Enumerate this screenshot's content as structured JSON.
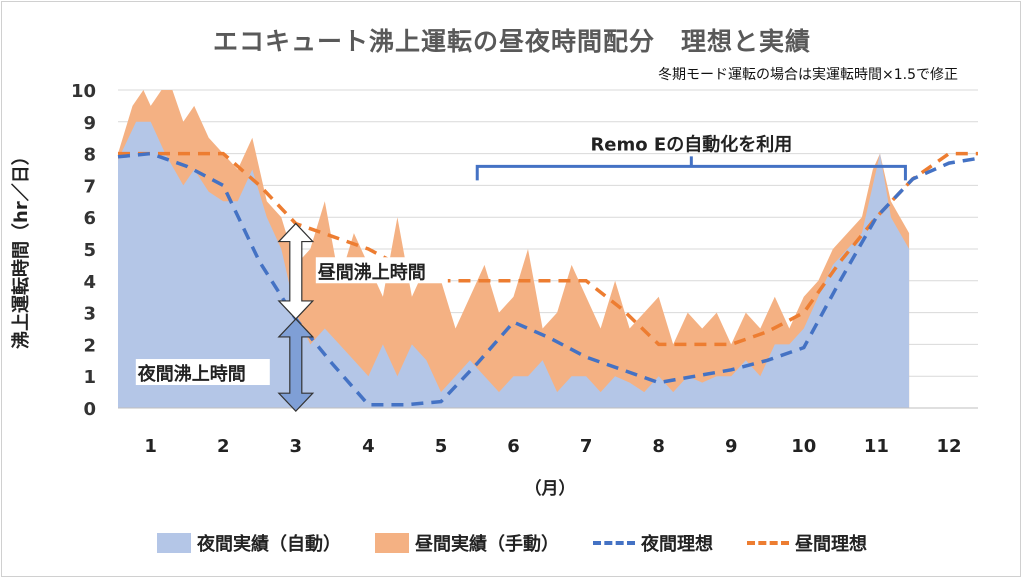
{
  "chart_data": {
    "type": "area",
    "title": "エコキュート沸上運転の昼夜時間配分　理想と実績",
    "subtitle": "冬期モード運転の場合は実運転時間×1.5で修正",
    "ylabel": "沸上運転時間（hr／日）",
    "xlabel": "（月）",
    "ylim": [
      0,
      10
    ],
    "yticks": [
      0,
      1,
      2,
      3,
      4,
      5,
      6,
      7,
      8,
      9,
      10
    ],
    "x_categories": [
      "1",
      "2",
      "3",
      "4",
      "5",
      "6",
      "7",
      "8",
      "9",
      "10",
      "11",
      "12"
    ],
    "colors": {
      "night_actual": "#b4c6e7",
      "day_actual": "#f4b183",
      "night_ideal": "#4472c4",
      "day_ideal": "#ed7d31",
      "annotation": "#4472c4",
      "arrow_fill": "#7f9fd6"
    },
    "series": [
      {
        "name": "夜間実績（自動）",
        "kind": "area",
        "x": [
          0.55,
          0.8,
          1.0,
          1.2,
          1.45,
          1.6,
          1.8,
          2.0,
          2.2,
          2.4,
          2.6,
          2.8,
          3.0,
          3.2,
          3.4,
          3.6,
          3.8,
          4.0,
          4.2,
          4.4,
          4.6,
          4.8,
          5.0,
          5.2,
          5.4,
          5.6,
          5.8,
          6.0,
          6.2,
          6.4,
          6.6,
          6.8,
          7.0,
          7.2,
          7.4,
          7.6,
          7.8,
          8.0,
          8.2,
          8.4,
          8.6,
          8.8,
          9.0,
          9.2,
          9.4,
          9.6,
          9.8,
          10.0,
          10.2,
          10.4,
          10.6,
          10.8,
          10.95,
          11.05,
          11.2,
          11.45
        ],
        "values": [
          7.8,
          9.0,
          9.0,
          8.0,
          7.0,
          7.5,
          6.8,
          6.5,
          6.5,
          7.5,
          6.0,
          5.0,
          3.0,
          2.0,
          2.5,
          2.0,
          1.5,
          1.0,
          2.0,
          1.0,
          2.0,
          1.5,
          0.5,
          1.0,
          1.5,
          1.0,
          0.5,
          1.0,
          1.0,
          1.5,
          0.5,
          1.0,
          1.0,
          0.5,
          1.0,
          0.8,
          0.5,
          1.0,
          0.5,
          1.0,
          0.8,
          1.0,
          1.0,
          1.5,
          1.0,
          2.0,
          2.0,
          2.5,
          3.5,
          4.5,
          5.0,
          5.5,
          7.0,
          8.0,
          6.0,
          5.0
        ]
      },
      {
        "name": "昼間実績（手動）",
        "kind": "area",
        "x": [
          0.55,
          0.75,
          0.9,
          1.0,
          1.15,
          1.3,
          1.45,
          1.6,
          1.8,
          2.0,
          2.2,
          2.4,
          2.6,
          2.8,
          3.0,
          3.2,
          3.4,
          3.6,
          3.8,
          4.0,
          4.2,
          4.4,
          4.6,
          4.8,
          5.0,
          5.2,
          5.4,
          5.6,
          5.8,
          6.0,
          6.2,
          6.4,
          6.6,
          6.8,
          7.0,
          7.2,
          7.4,
          7.6,
          7.8,
          8.0,
          8.2,
          8.4,
          8.6,
          8.8,
          9.0,
          9.2,
          9.4,
          9.6,
          9.8,
          10.0,
          10.2,
          10.4,
          10.6,
          10.8,
          10.95,
          11.05,
          11.2,
          11.45
        ],
        "values": [
          8.0,
          9.5,
          10.0,
          9.5,
          10.0,
          10.0,
          9.0,
          9.5,
          8.5,
          8.0,
          7.5,
          8.5,
          6.5,
          6.0,
          4.5,
          5.0,
          6.5,
          4.0,
          5.5,
          4.5,
          3.5,
          6.0,
          3.5,
          4.5,
          4.0,
          2.5,
          3.5,
          4.5,
          3.0,
          3.5,
          5.0,
          2.5,
          3.0,
          4.5,
          3.5,
          2.5,
          4.0,
          2.5,
          3.0,
          3.5,
          2.0,
          3.0,
          2.5,
          3.0,
          2.0,
          3.0,
          2.5,
          3.5,
          2.5,
          3.5,
          4.0,
          5.0,
          5.5,
          6.0,
          7.5,
          8.0,
          6.5,
          5.5
        ]
      },
      {
        "name": "夜間理想",
        "kind": "line",
        "x": [
          0.55,
          1.0,
          1.5,
          2.0,
          2.5,
          3.0,
          3.5,
          4.0,
          4.5,
          5.0,
          5.5,
          6.0,
          6.5,
          7.0,
          7.5,
          8.0,
          8.5,
          9.0,
          9.5,
          10.0,
          10.5,
          11.0,
          11.5,
          12.0,
          12.4
        ],
        "values": [
          7.9,
          8.0,
          7.6,
          7.0,
          4.6,
          2.8,
          1.4,
          0.1,
          0.1,
          0.2,
          1.4,
          2.7,
          2.2,
          1.6,
          1.2,
          0.8,
          1.0,
          1.2,
          1.5,
          1.9,
          4.0,
          6.0,
          7.2,
          7.7,
          7.85
        ]
      },
      {
        "name": "昼間理想",
        "kind": "line",
        "x": [
          0.55,
          1.0,
          1.5,
          2.0,
          2.5,
          3.0,
          3.5,
          4.0,
          4.5,
          5.0,
          5.5,
          6.0,
          6.5,
          7.0,
          7.5,
          8.0,
          8.5,
          9.0,
          9.5,
          10.0,
          10.5,
          11.0,
          11.5,
          12.0,
          12.4
        ],
        "values": [
          8.0,
          8.0,
          8.0,
          8.0,
          7.0,
          5.8,
          5.4,
          5.0,
          4.4,
          4.0,
          4.0,
          4.0,
          4.0,
          4.0,
          3.1,
          2.0,
          2.0,
          2.0,
          2.4,
          3.0,
          4.6,
          6.0,
          7.2,
          8.0,
          8.0
        ]
      }
    ],
    "annotations": {
      "bracket_label": "Remo Eの自動化を利用",
      "bracket_x": [
        5.5,
        11.4
      ],
      "bracket_y": 7.6,
      "day_arrow_label": "昼間沸上時間",
      "day_arrow_range": [
        2.8,
        5.8
      ],
      "night_arrow_label": "夜間沸上時間",
      "night_arrow_range": [
        -0.1,
        2.8
      ],
      "arrow_x": 3.0
    },
    "legend_position": "bottom",
    "grid": "horizontal"
  }
}
